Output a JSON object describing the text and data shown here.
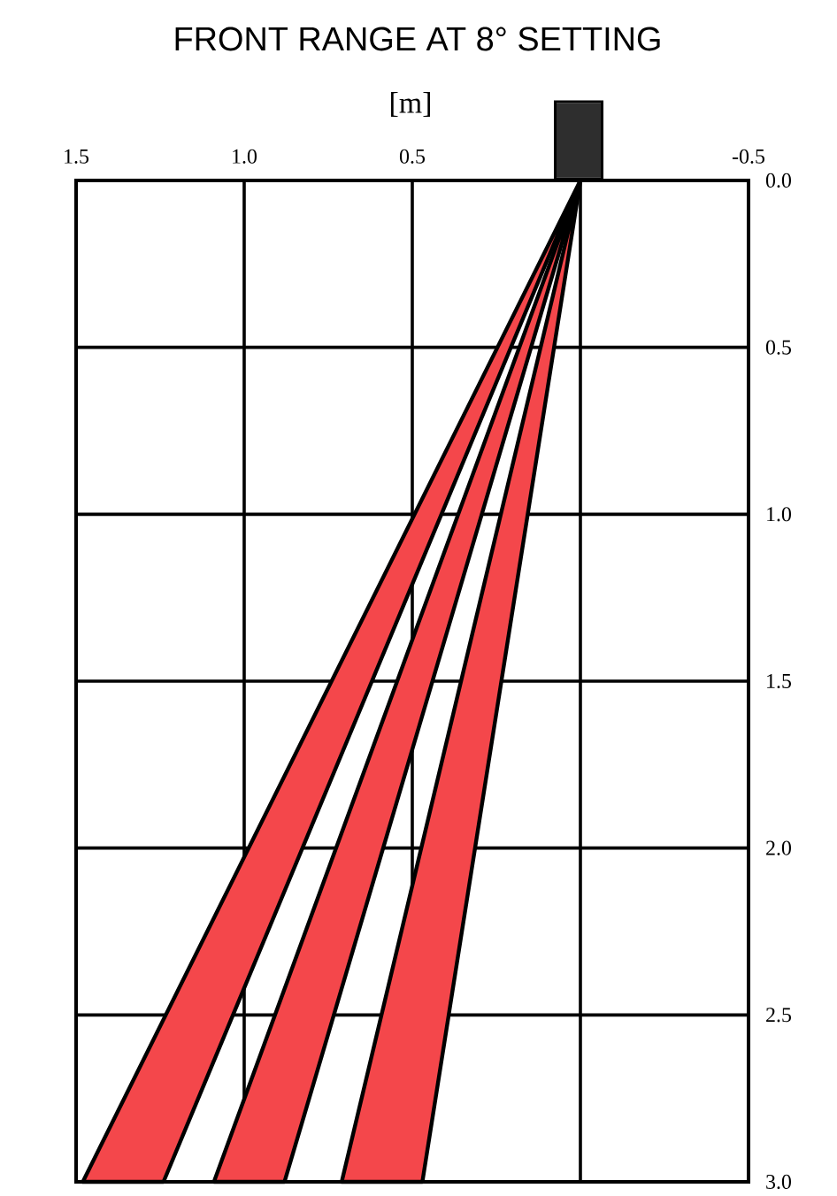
{
  "chart_data": {
    "type": "area",
    "title": "FRONT RANGE AT 8° SETTING",
    "xlabel": "[m]",
    "series": [
      {
        "color": "#f4474b",
        "x": [
          0,
          1.48,
          1.24,
          0
        ],
        "values": [
          0,
          3,
          3,
          0
        ]
      },
      {
        "color": "#f4474b",
        "x": [
          0,
          1.09,
          0.88,
          0
        ],
        "values": [
          0,
          3,
          3,
          0
        ]
      },
      {
        "color": "#f4474b",
        "x": [
          0,
          0.71,
          0.47,
          0
        ],
        "values": [
          0,
          3,
          3,
          0
        ]
      }
    ],
    "xlim": [
      1.5,
      -0.5
    ],
    "xticks": [
      1.5,
      {
        "value": 1,
        "label": "1.0"
      },
      0.5,
      {
        "value": 0,
        "label": null
      },
      -0.5
    ],
    "ylim": [
      3.0,
      0.0
    ],
    "yticks": [
      {
        "value": 0,
        "label": "0.0"
      },
      0.5,
      {
        "value": 1,
        "label": "1.0"
      },
      1.5,
      {
        "value": 2,
        "label": "2.0"
      },
      2.5,
      {
        "value": 3,
        "label": "3.0"
      }
    ],
    "grid": true
  }
}
